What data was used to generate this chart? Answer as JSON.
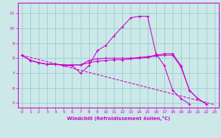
{
  "bg_color": "#cce8e8",
  "grid_color": "#99cccc",
  "line_color": "#cc00cc",
  "xlabel": "Windchill (Refroidissement éolien,°C)",
  "xlim": [
    -0.5,
    23.5
  ],
  "ylim": [
    4.7,
    11.7
  ],
  "yticks": [
    5,
    6,
    7,
    8,
    9,
    10,
    11
  ],
  "xticks": [
    0,
    1,
    2,
    3,
    4,
    5,
    6,
    7,
    8,
    9,
    10,
    11,
    12,
    13,
    14,
    15,
    16,
    17,
    18,
    19,
    20,
    21,
    22,
    23
  ],
  "line1_x": [
    0,
    1,
    2,
    3,
    4,
    5,
    6,
    7,
    8,
    9,
    10,
    11,
    12,
    13,
    14,
    15,
    16,
    17,
    18,
    19,
    20,
    21,
    22,
    23
  ],
  "line1_y": [
    8.2,
    7.85,
    7.7,
    7.6,
    7.6,
    7.5,
    7.5,
    7.0,
    7.5,
    8.5,
    8.85,
    9.5,
    10.1,
    10.7,
    10.8,
    10.8,
    8.3,
    7.5,
    5.85,
    5.3,
    4.95,
    null,
    null,
    null
  ],
  "line2_x": [
    0,
    1,
    2,
    3,
    4,
    5,
    6,
    7,
    8,
    9,
    10,
    11,
    12,
    13,
    14,
    15,
    16,
    17,
    18,
    19,
    20,
    21,
    22,
    23
  ],
  "line2_y": [
    8.2,
    7.85,
    7.7,
    7.6,
    7.6,
    7.55,
    7.55,
    7.55,
    7.85,
    7.95,
    8.0,
    8.0,
    8.0,
    8.0,
    8.05,
    8.1,
    8.2,
    8.3,
    8.3,
    7.5,
    5.85,
    5.3,
    4.95,
    null
  ],
  "line3_x": [
    0,
    1,
    2,
    3,
    4,
    5,
    6,
    7,
    8,
    9,
    10,
    11,
    12,
    13,
    14,
    15,
    16,
    17,
    18,
    19,
    20,
    21,
    22,
    23
  ],
  "line3_y": [
    8.2,
    7.87,
    7.7,
    7.6,
    7.6,
    7.55,
    7.55,
    7.55,
    7.7,
    7.8,
    7.85,
    7.9,
    7.9,
    7.95,
    8.0,
    8.05,
    8.15,
    8.2,
    8.2,
    7.4,
    5.85,
    5.3,
    4.95,
    null
  ],
  "line4_x": [
    0,
    23
  ],
  "line4_y": [
    8.2,
    4.9
  ]
}
